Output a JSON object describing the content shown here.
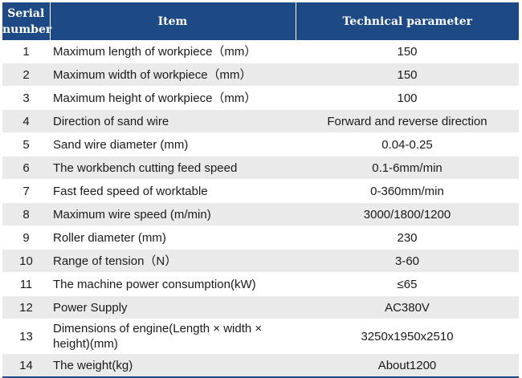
{
  "header": {
    "serial": "Serial number",
    "serial_line1": "Serial",
    "serial_line2": "number",
    "item": "Item",
    "parameter": "Technical parameter"
  },
  "rows": [
    {
      "no": "1",
      "item": "Maximum length of workpiece（mm）",
      "value": "150"
    },
    {
      "no": "2",
      "item": "Maximum width of workpiece（mm）",
      "value": "150"
    },
    {
      "no": "3",
      "item": "Maximum height of workpiece（mm）",
      "value": "100"
    },
    {
      "no": "4",
      "item": "Direction of sand wire",
      "value": "Forward and reverse direction"
    },
    {
      "no": "5",
      "item": "Sand wire diameter (mm)",
      "value": "0.04-0.25"
    },
    {
      "no": "6",
      "item": "The workbench cutting feed speed",
      "value": "0.1-6mm/min"
    },
    {
      "no": "7",
      "item": "Fast feed speed of worktable",
      "value": "0-360mm/min"
    },
    {
      "no": "8",
      "item": "Maximum wire speed (m/min)",
      "value": "3000/1800/1200"
    },
    {
      "no": "9",
      "item": "Roller diameter (mm)",
      "value": "230"
    },
    {
      "no": "10",
      "item": "Range of tension（N）",
      "value": "3-60"
    },
    {
      "no": "11",
      "item": "The machine power consumption(kW)",
      "value": "≤65"
    },
    {
      "no": "12",
      "item": "Power Supply",
      "value": "AC380V"
    },
    {
      "no": "13",
      "item": "Dimensions of engine(Length × width × height)(mm)",
      "value": "3250x1950x2510"
    },
    {
      "no": "14",
      "item": "The weight(kg)",
      "value": "About1200"
    }
  ],
  "colors": {
    "header_bg": "#1d4a84",
    "header_text": "#ffffff",
    "stripe": "#eaeaea"
  }
}
